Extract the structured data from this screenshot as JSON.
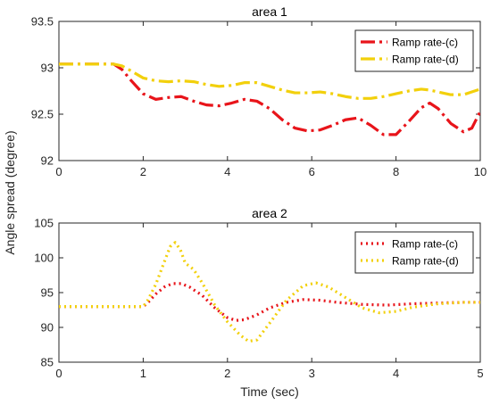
{
  "figure": {
    "shared_ylabel": "Angle spread (degree)"
  },
  "chart_data": [
    {
      "type": "line",
      "title": "area 1",
      "xlabel": "",
      "ylabel": "Angle spread (degree)",
      "xlim": [
        0,
        10
      ],
      "ylim": [
        92,
        93.5
      ],
      "xticks": [
        0,
        2,
        4,
        6,
        8,
        10
      ],
      "yticks": [
        92,
        92.5,
        93,
        93.5
      ],
      "grid": false,
      "legend_position": "top-right",
      "line_style": "dash-dot",
      "series": [
        {
          "name": "Ramp rate-(c)",
          "color": "#e8141a",
          "x": [
            0,
            0.5,
            1,
            1.3,
            1.5,
            1.7,
            2,
            2.3,
            2.6,
            2.9,
            3.2,
            3.5,
            3.8,
            4.1,
            4.4,
            4.7,
            5.0,
            5.3,
            5.6,
            5.9,
            6.2,
            6.5,
            6.8,
            7.1,
            7.4,
            7.7,
            8.0,
            8.3,
            8.6,
            8.8,
            9.0,
            9.3,
            9.6,
            9.8,
            10
          ],
          "y": [
            93.04,
            93.04,
            93.04,
            93.04,
            92.98,
            92.87,
            92.72,
            92.66,
            92.68,
            92.69,
            92.64,
            92.6,
            92.59,
            92.62,
            92.66,
            92.64,
            92.56,
            92.44,
            92.35,
            92.32,
            92.33,
            92.38,
            92.44,
            92.46,
            92.38,
            92.28,
            92.28,
            92.42,
            92.57,
            92.62,
            92.56,
            92.4,
            92.31,
            92.35,
            92.53
          ]
        },
        {
          "name": "Ramp rate-(d)",
          "color": "#f2d00c",
          "x": [
            0,
            0.5,
            1,
            1.3,
            1.5,
            1.7,
            2,
            2.3,
            2.6,
            2.9,
            3.2,
            3.5,
            3.8,
            4.1,
            4.4,
            4.7,
            5.0,
            5.3,
            5.6,
            5.9,
            6.2,
            6.5,
            6.8,
            7.1,
            7.4,
            7.7,
            8.0,
            8.3,
            8.6,
            8.8,
            9.0,
            9.3,
            9.6,
            9.8,
            10
          ],
          "y": [
            93.04,
            93.04,
            93.04,
            93.04,
            93.02,
            92.97,
            92.89,
            92.86,
            92.85,
            92.86,
            92.85,
            92.82,
            92.8,
            92.81,
            92.84,
            92.84,
            92.8,
            92.76,
            92.73,
            92.73,
            92.74,
            92.72,
            92.69,
            92.67,
            92.67,
            92.69,
            92.72,
            92.75,
            92.77,
            92.76,
            92.74,
            92.71,
            92.71,
            92.74,
            92.77
          ]
        }
      ]
    },
    {
      "type": "line",
      "title": "area 2",
      "xlabel": "Time (sec)",
      "ylabel": "Angle spread (degree)",
      "xlim": [
        0,
        5
      ],
      "ylim": [
        85,
        105
      ],
      "xticks": [
        0,
        1,
        2,
        3,
        4,
        5
      ],
      "yticks": [
        85,
        90,
        95,
        100,
        105
      ],
      "grid": false,
      "legend_position": "top-right",
      "line_style": "dotted",
      "series": [
        {
          "name": "Ramp rate-(c)",
          "color": "#e8141a",
          "x": [
            0,
            0.5,
            1.0,
            1.05,
            1.15,
            1.25,
            1.35,
            1.45,
            1.55,
            1.7,
            1.85,
            2.0,
            2.1,
            2.2,
            2.35,
            2.5,
            2.7,
            2.9,
            3.1,
            3.3,
            3.6,
            3.9,
            4.2,
            4.5,
            4.8,
            5.0
          ],
          "y": [
            93,
            93,
            93,
            93.5,
            94.8,
            95.8,
            96.3,
            96.3,
            95.8,
            94.6,
            92.8,
            91.4,
            91.0,
            91.1,
            91.8,
            92.8,
            93.6,
            94.0,
            93.9,
            93.6,
            93.3,
            93.2,
            93.4,
            93.5,
            93.6,
            93.6
          ]
        },
        {
          "name": "Ramp rate-(d)",
          "color": "#f2d00c",
          "x": [
            0,
            0.5,
            1.0,
            1.05,
            1.15,
            1.25,
            1.32,
            1.38,
            1.44,
            1.5,
            1.55,
            1.6,
            1.7,
            1.85,
            2.0,
            2.15,
            2.25,
            2.35,
            2.5,
            2.7,
            2.9,
            3.05,
            3.2,
            3.4,
            3.6,
            3.8,
            4.0,
            4.2,
            4.5,
            4.8,
            5.0
          ],
          "y": [
            93,
            93,
            93,
            93.8,
            96.2,
            99.4,
            101.6,
            102.2,
            101.2,
            99.2,
            98.8,
            98.3,
            96.4,
            93.2,
            90.8,
            88.9,
            88.0,
            88.2,
            90.6,
            93.9,
            96.0,
            96.4,
            95.8,
            94.3,
            92.8,
            92.1,
            92.3,
            92.9,
            93.4,
            93.6,
            93.6
          ]
        }
      ]
    }
  ]
}
